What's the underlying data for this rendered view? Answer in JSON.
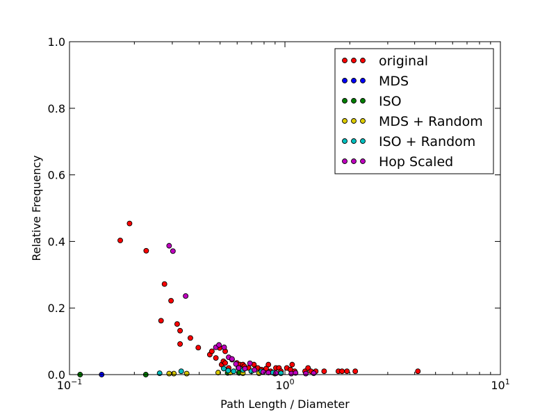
{
  "chart_data": {
    "type": "scatter",
    "title": "",
    "xlabel": "Path Length / Diameter",
    "ylabel": "Relative Frequency",
    "xscale": "log",
    "xlim": [
      0.1,
      10
    ],
    "ylim": [
      0,
      1.0
    ],
    "x_ticks": [
      {
        "value": 0.1,
        "base": "10",
        "exp": "−1"
      },
      {
        "value": 1,
        "base": "10",
        "exp": "0"
      },
      {
        "value": 10,
        "base": "10",
        "exp": "1"
      }
    ],
    "y_ticks": [
      {
        "value": 0,
        "label": "0.0"
      },
      {
        "value": 0.2,
        "label": "0.2"
      },
      {
        "value": 0.4,
        "label": "0.4"
      },
      {
        "value": 0.6,
        "label": "0.6"
      },
      {
        "value": 0.8,
        "label": "0.8"
      },
      {
        "value": 1.0,
        "label": "1.0"
      }
    ],
    "grid": false,
    "legend_position": "top-right",
    "series": [
      {
        "name": "original",
        "color": "#ff0000",
        "points": [
          [
            0.172,
            0.403
          ],
          [
            0.19,
            0.454
          ],
          [
            0.227,
            0.372
          ],
          [
            0.276,
            0.272
          ],
          [
            0.296,
            0.222
          ],
          [
            0.266,
            0.162
          ],
          [
            0.316,
            0.152
          ],
          [
            0.326,
            0.132
          ],
          [
            0.364,
            0.11
          ],
          [
            0.326,
            0.092
          ],
          [
            0.396,
            0.081
          ],
          [
            0.448,
            0.06
          ],
          [
            0.458,
            0.07
          ],
          [
            0.478,
            0.05
          ],
          [
            0.498,
            0.08
          ],
          [
            0.508,
            0.03
          ],
          [
            0.518,
            0.04
          ],
          [
            0.528,
            0.07
          ],
          [
            0.528,
            0.035
          ],
          [
            0.548,
            0.02
          ],
          [
            0.568,
            0.045
          ],
          [
            0.598,
            0.035
          ],
          [
            0.618,
            0.03
          ],
          [
            0.638,
            0.03
          ],
          [
            0.648,
            0.025
          ],
          [
            0.678,
            0.02
          ],
          [
            0.718,
            0.03
          ],
          [
            0.748,
            0.02
          ],
          [
            0.778,
            0.015
          ],
          [
            0.818,
            0.018
          ],
          [
            0.838,
            0.03
          ],
          [
            0.858,
            0.01
          ],
          [
            0.908,
            0.02
          ],
          [
            0.938,
            0.02
          ],
          [
            0.958,
            0.01
          ],
          [
            1.02,
            0.02
          ],
          [
            1.06,
            0.015
          ],
          [
            1.08,
            0.03
          ],
          [
            1.11,
            0.01
          ],
          [
            1.24,
            0.01
          ],
          [
            1.28,
            0.02
          ],
          [
            1.32,
            0.01
          ],
          [
            1.39,
            0.01
          ],
          [
            1.52,
            0.01
          ],
          [
            1.77,
            0.01
          ],
          [
            1.84,
            0.01
          ],
          [
            1.94,
            0.01
          ],
          [
            2.12,
            0.01
          ],
          [
            4.14,
            0.01
          ]
        ]
      },
      {
        "name": "MDS",
        "color": "#0000ff",
        "points": [
          [
            0.141,
            0.0
          ]
        ]
      },
      {
        "name": "ISO",
        "color": "#008000",
        "points": [
          [
            0.112,
            0.0
          ],
          [
            0.226,
            0.0
          ],
          [
            0.542,
            0.005
          ],
          [
            0.612,
            0.005
          ]
        ]
      },
      {
        "name": "MDS + Random",
        "color": "#ddcc00",
        "points": [
          [
            0.29,
            0.003
          ],
          [
            0.305,
            0.003
          ],
          [
            0.35,
            0.003
          ],
          [
            0.49,
            0.006
          ],
          [
            0.558,
            0.006
          ],
          [
            0.638,
            0.004
          ],
          [
            0.758,
            0.004
          ],
          [
            0.898,
            0.003
          ]
        ]
      },
      {
        "name": "ISO + Random",
        "color": "#00c0c0",
        "points": [
          [
            0.262,
            0.004
          ],
          [
            0.33,
            0.01
          ],
          [
            0.52,
            0.018
          ],
          [
            0.545,
            0.012
          ],
          [
            0.578,
            0.01
          ],
          [
            0.608,
            0.02
          ],
          [
            0.638,
            0.014
          ],
          [
            0.698,
            0.01
          ],
          [
            0.778,
            0.01
          ],
          [
            0.878,
            0.006
          ],
          [
            0.958,
            0.004
          ]
        ]
      },
      {
        "name": "Hop Scaled",
        "color": "#bf00bf",
        "points": [
          [
            0.29,
            0.387
          ],
          [
            0.302,
            0.371
          ],
          [
            0.346,
            0.236
          ],
          [
            0.478,
            0.082
          ],
          [
            0.494,
            0.089
          ],
          [
            0.522,
            0.082
          ],
          [
            0.548,
            0.052
          ],
          [
            0.568,
            0.047
          ],
          [
            0.592,
            0.032
          ],
          [
            0.61,
            0.02
          ],
          [
            0.652,
            0.018
          ],
          [
            0.688,
            0.034
          ],
          [
            0.722,
            0.014
          ],
          [
            0.792,
            0.008
          ],
          [
            0.838,
            0.006
          ],
          [
            0.908,
            0.004
          ],
          [
            1.07,
            0.003
          ],
          [
            1.12,
            0.005
          ],
          [
            1.25,
            0.003
          ],
          [
            1.36,
            0.004
          ]
        ]
      }
    ]
  }
}
